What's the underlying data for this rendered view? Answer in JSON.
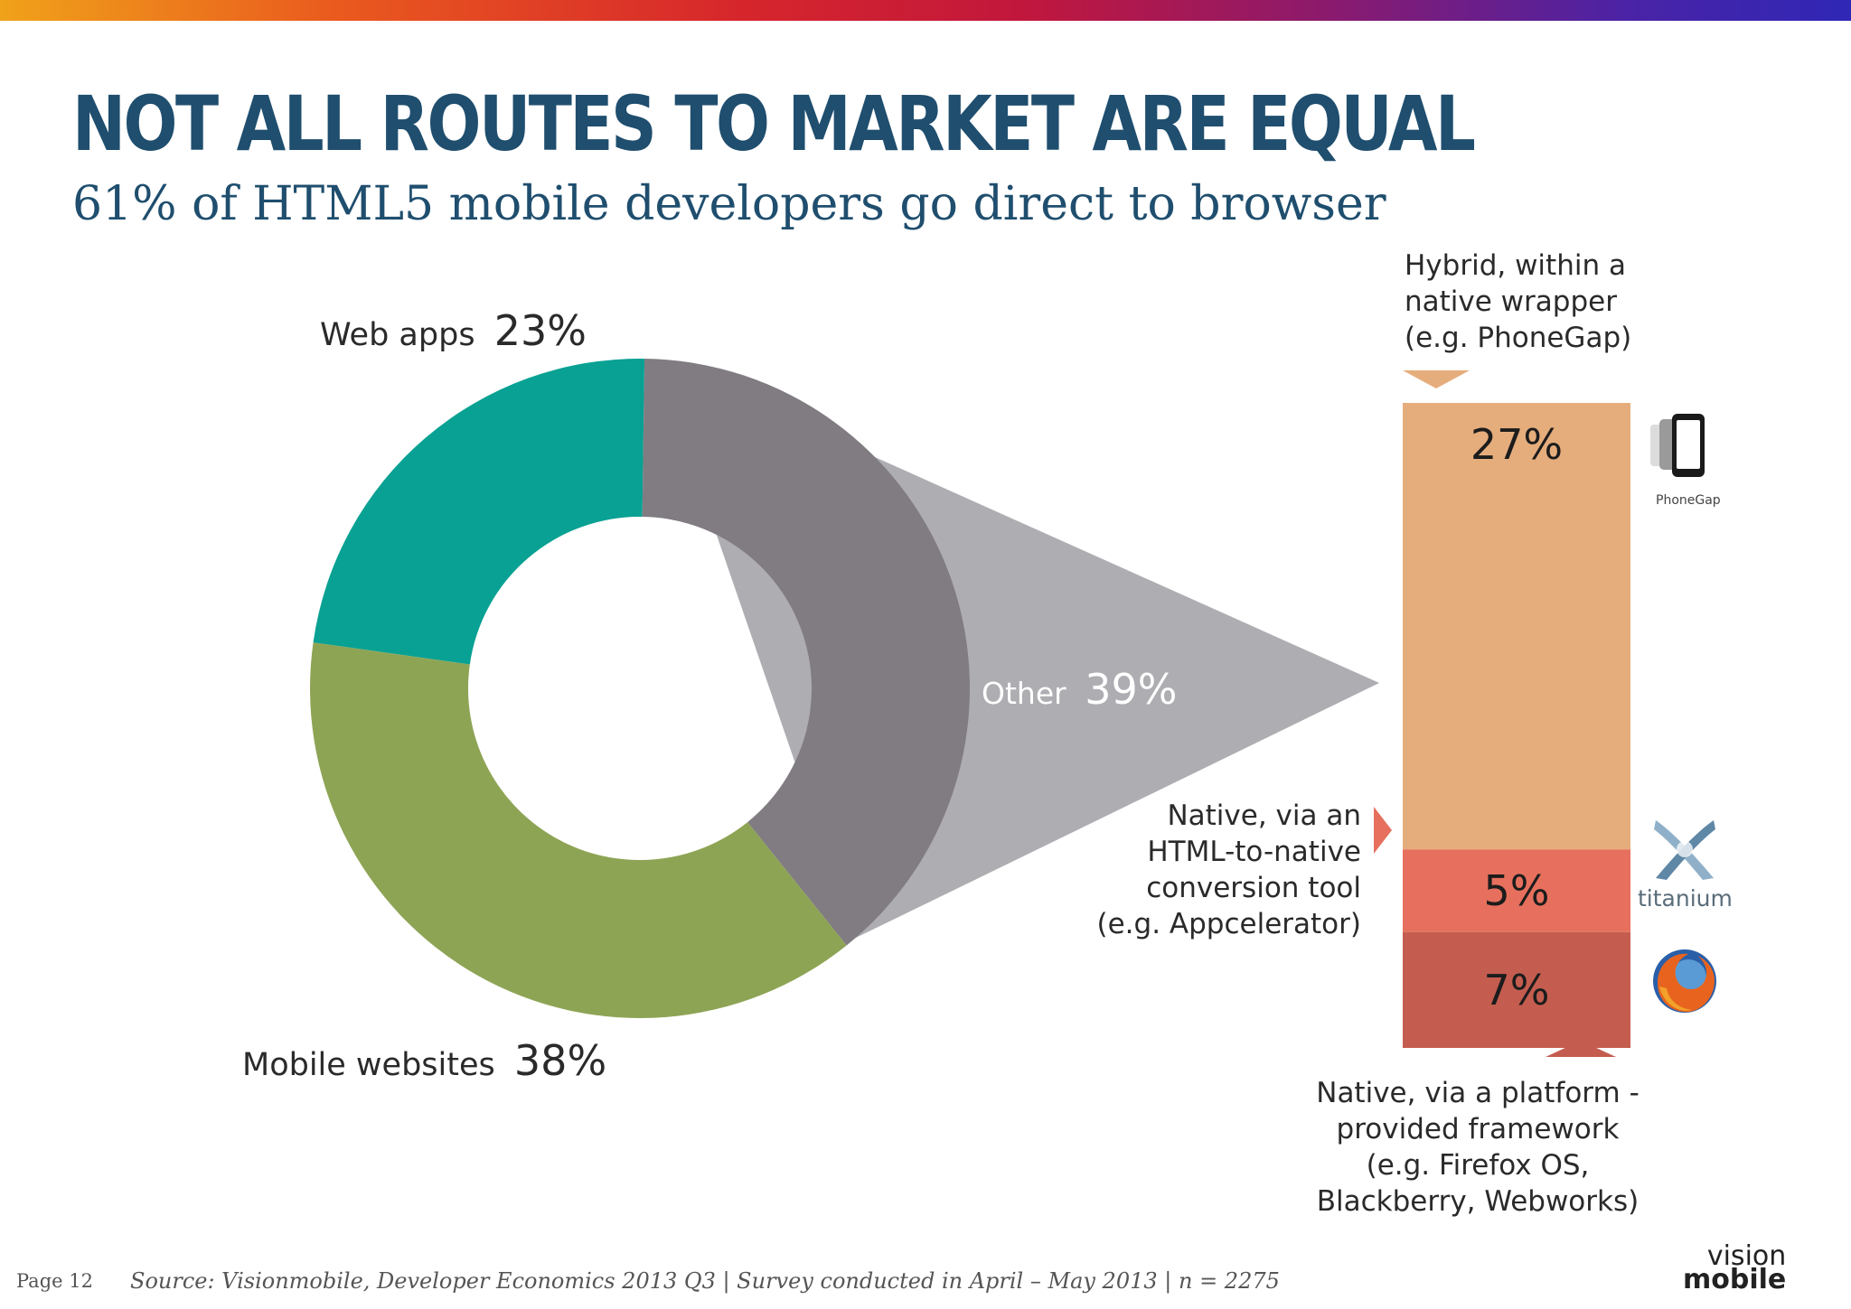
{
  "title": "NOT ALL ROUTES TO MARKET ARE EQUAL",
  "subtitle": "61% of HTML5 mobile developers go direct to browser",
  "colors": {
    "web_apps": "#08a193",
    "mobile_websites": "#8ea455",
    "other": "#807c82",
    "hybrid": "#e6ad7c",
    "html_to_native": "#e6705d",
    "platform_framework": "#c45d4f",
    "title": "#1f4e6e"
  },
  "chart_data": [
    {
      "type": "pie",
      "variant": "donut",
      "slices": [
        {
          "name": "Web apps",
          "value": 23,
          "label": "Web apps",
          "value_label": "23%"
        },
        {
          "name": "Other",
          "value": 39,
          "label": "Other",
          "value_label": "39%"
        },
        {
          "name": "Mobile websites",
          "value": 38,
          "label": "Mobile websites",
          "value_label": "38%"
        }
      ]
    },
    {
      "type": "bar",
      "variant": "stacked",
      "parent": "Other",
      "segments": [
        {
          "name": "Hybrid, within a native wrapper (e.g. PhoneGap)",
          "value": 27,
          "value_label": "27%"
        },
        {
          "name": "Native, via an HTML-to-native conversion tool (e.g. Appcelerator)",
          "value": 5,
          "value_label": "5%"
        },
        {
          "name": "Native, via a platform - provided framework (e.g. Firefox OS, Blackberry, Webworks)",
          "value": 7,
          "value_label": "7%"
        }
      ]
    }
  ],
  "annotations": {
    "hybrid": [
      "Hybrid, within a",
      "native wrapper",
      "(e.g. PhoneGap)"
    ],
    "html_to_native": [
      "Native, via an",
      "HTML-to-native",
      "conversion tool",
      "(e.g. Appcelerator)"
    ],
    "platform": [
      "Native, via a platform -",
      "provided framework",
      "(e.g. Firefox OS,",
      "Blackberry, Webworks)"
    ]
  },
  "logos": {
    "phonegap": {
      "icon": "phonegap-icon",
      "caption": "PhoneGap"
    },
    "titanium": {
      "icon": "titanium-icon",
      "caption": "titanium"
    },
    "firefox": {
      "icon": "firefox-icon"
    }
  },
  "footer": {
    "page": "Page 12",
    "source": "Source: Visionmobile, Developer Economics 2013 Q3 | Survey conducted in April – May 2013 | n = 2275",
    "brand_line1": "vision",
    "brand_line2": "mobile"
  }
}
